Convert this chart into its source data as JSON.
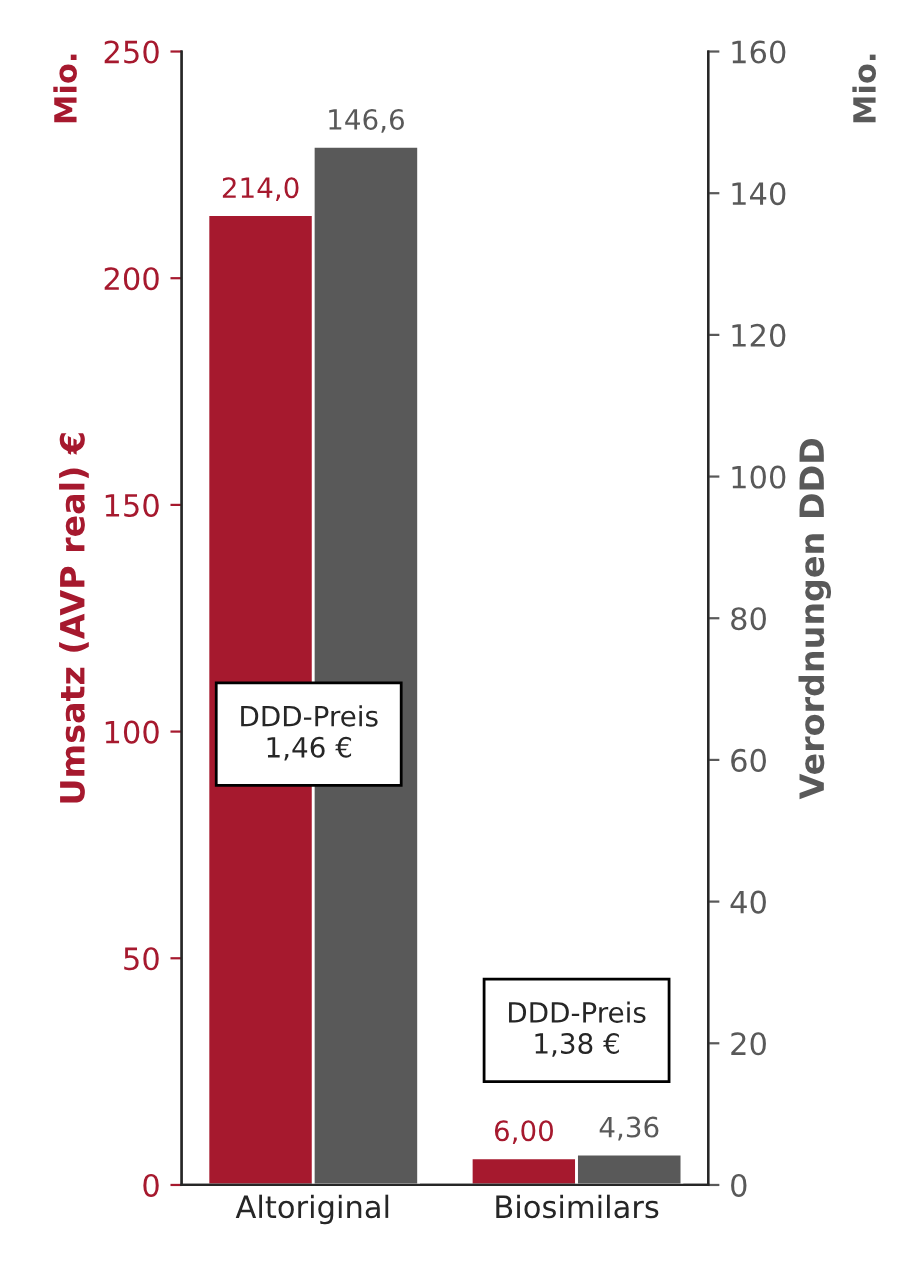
{
  "chart_data": {
    "type": "bar",
    "categories": [
      "Altoriginal",
      "Biosimilars"
    ],
    "series": [
      {
        "color": "#a6192e",
        "values": [
          214.0,
          6.0
        ],
        "value_labels": [
          "214,0",
          "6,00"
        ]
      },
      {
        "color": "#595959",
        "values": [
          146.6,
          4.36
        ],
        "value_labels": [
          "146,6",
          "4,36"
        ],
        "axis": "y2"
      }
    ],
    "ylabel": "Umsatz (AVP real) €",
    "y2label": "Verordnungen DDD",
    "ylim": [
      0,
      250
    ],
    "yticks": [
      0,
      50,
      100,
      150,
      200,
      250
    ],
    "y2lim": [
      0,
      160
    ],
    "y2ticks": [
      0,
      20,
      40,
      60,
      80,
      100,
      120,
      140,
      160
    ],
    "annotations": [
      "Mio.",
      "Mio.",
      "DDD-Preis\n1,46 €",
      "DDD-Preis\n1,38 €"
    ],
    "grid": false,
    "legend": false
  }
}
